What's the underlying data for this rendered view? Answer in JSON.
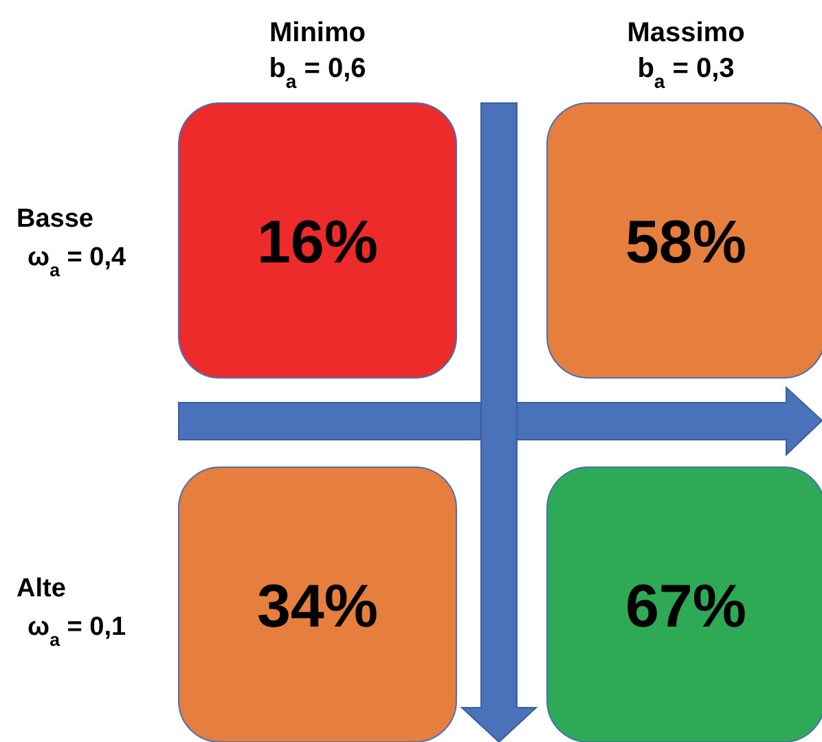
{
  "chart_data": {
    "type": "heatmap",
    "categories": [
      "Minimo\nb$_{a}$ = 0,6",
      "Massimo\nb$_{a}$ = 0,3"
    ],
    "y_categories": [
      "Basse\nω$_{a}$ = 0,4",
      "Alte\nω$_{a}$ = 0,1"
    ],
    "cells": [
      [
        16,
        58
      ],
      [
        34,
        67
      ]
    ],
    "cell_labels": [
      [
        "16%",
        "58%"
      ],
      [
        "34%",
        "67%"
      ]
    ],
    "colors": [
      [
        "#ee2b2b",
        "#e67e3e"
      ],
      [
        "#e67e3e",
        "#2eaa57"
      ]
    ]
  }
}
